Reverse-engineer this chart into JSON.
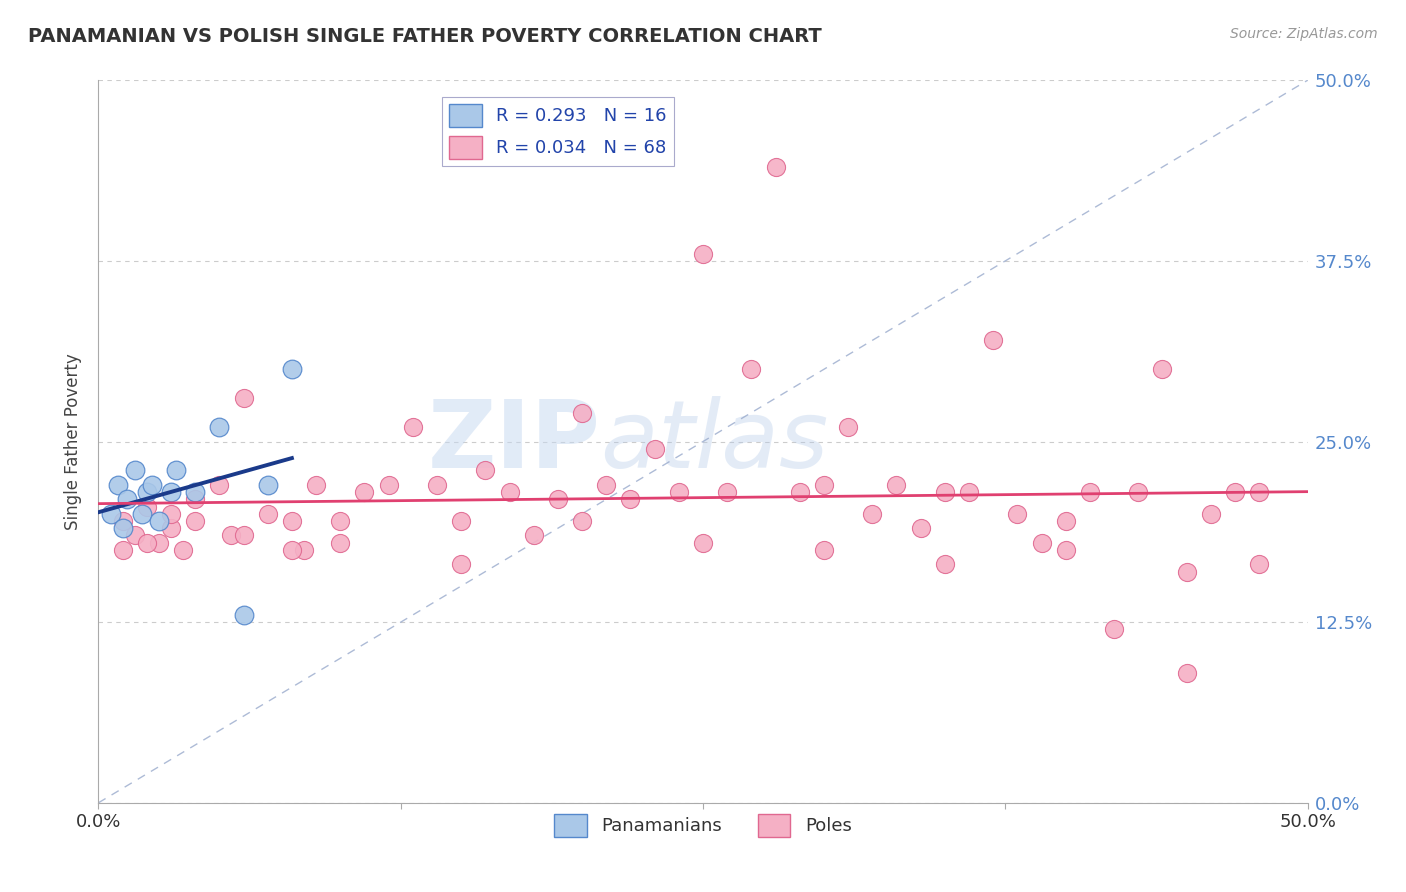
{
  "title": "PANAMANIAN VS POLISH SINGLE FATHER POVERTY CORRELATION CHART",
  "source": "Source: ZipAtlas.com",
  "ylabel": "Single Father Poverty",
  "xlim": [
    0.0,
    0.5
  ],
  "ylim": [
    0.0,
    0.5
  ],
  "xticks": [
    0.0,
    0.125,
    0.25,
    0.375,
    0.5
  ],
  "yticks": [
    0.0,
    0.125,
    0.25,
    0.375,
    0.5
  ],
  "xtick_labels": [
    "0.0%",
    "",
    "",
    "",
    "50.0%"
  ],
  "ytick_labels_right": [
    "0.0%",
    "12.5%",
    "25.0%",
    "37.5%",
    "50.0%"
  ],
  "panamanian_color": "#aac8e8",
  "polish_color": "#f5b0c5",
  "panamanian_edge": "#5588cc",
  "polish_edge": "#e06890",
  "blue_line_color": "#1a3a8a",
  "pink_line_color": "#e04070",
  "diag_line_color": "#99aacc",
  "R_pan": 0.293,
  "N_pan": 16,
  "R_pol": 0.034,
  "N_pol": 68,
  "legend_label_pan": "Panamanians",
  "legend_label_pol": "Poles",
  "watermark_zip": "ZIP",
  "watermark_atlas": "atlas",
  "background_color": "#ffffff",
  "tick_color": "#5588cc",
  "pan_x": [
    0.005,
    0.008,
    0.01,
    0.012,
    0.015,
    0.018,
    0.02,
    0.022,
    0.025,
    0.03,
    0.032,
    0.04,
    0.05,
    0.06,
    0.07,
    0.08
  ],
  "pan_y": [
    0.2,
    0.22,
    0.19,
    0.21,
    0.23,
    0.2,
    0.215,
    0.22,
    0.195,
    0.215,
    0.23,
    0.215,
    0.26,
    0.13,
    0.22,
    0.3
  ],
  "pol_x": [
    0.01,
    0.015,
    0.02,
    0.025,
    0.03,
    0.035,
    0.04,
    0.05,
    0.055,
    0.06,
    0.07,
    0.08,
    0.085,
    0.09,
    0.1,
    0.11,
    0.12,
    0.13,
    0.14,
    0.15,
    0.16,
    0.17,
    0.18,
    0.19,
    0.2,
    0.21,
    0.22,
    0.23,
    0.24,
    0.25,
    0.26,
    0.27,
    0.28,
    0.29,
    0.3,
    0.31,
    0.32,
    0.33,
    0.34,
    0.35,
    0.36,
    0.37,
    0.38,
    0.39,
    0.4,
    0.41,
    0.42,
    0.43,
    0.44,
    0.45,
    0.46,
    0.47,
    0.48,
    0.01,
    0.02,
    0.03,
    0.04,
    0.06,
    0.08,
    0.1,
    0.15,
    0.2,
    0.25,
    0.3,
    0.35,
    0.4,
    0.45,
    0.48
  ],
  "pol_y": [
    0.195,
    0.185,
    0.205,
    0.18,
    0.19,
    0.175,
    0.21,
    0.22,
    0.185,
    0.28,
    0.2,
    0.195,
    0.175,
    0.22,
    0.195,
    0.215,
    0.22,
    0.26,
    0.22,
    0.195,
    0.23,
    0.215,
    0.185,
    0.21,
    0.27,
    0.22,
    0.21,
    0.245,
    0.215,
    0.38,
    0.215,
    0.3,
    0.44,
    0.215,
    0.22,
    0.26,
    0.2,
    0.22,
    0.19,
    0.215,
    0.215,
    0.32,
    0.2,
    0.18,
    0.195,
    0.215,
    0.12,
    0.215,
    0.3,
    0.09,
    0.2,
    0.215,
    0.215,
    0.175,
    0.18,
    0.2,
    0.195,
    0.185,
    0.175,
    0.18,
    0.165,
    0.195,
    0.18,
    0.175,
    0.165,
    0.175,
    0.16,
    0.165
  ]
}
